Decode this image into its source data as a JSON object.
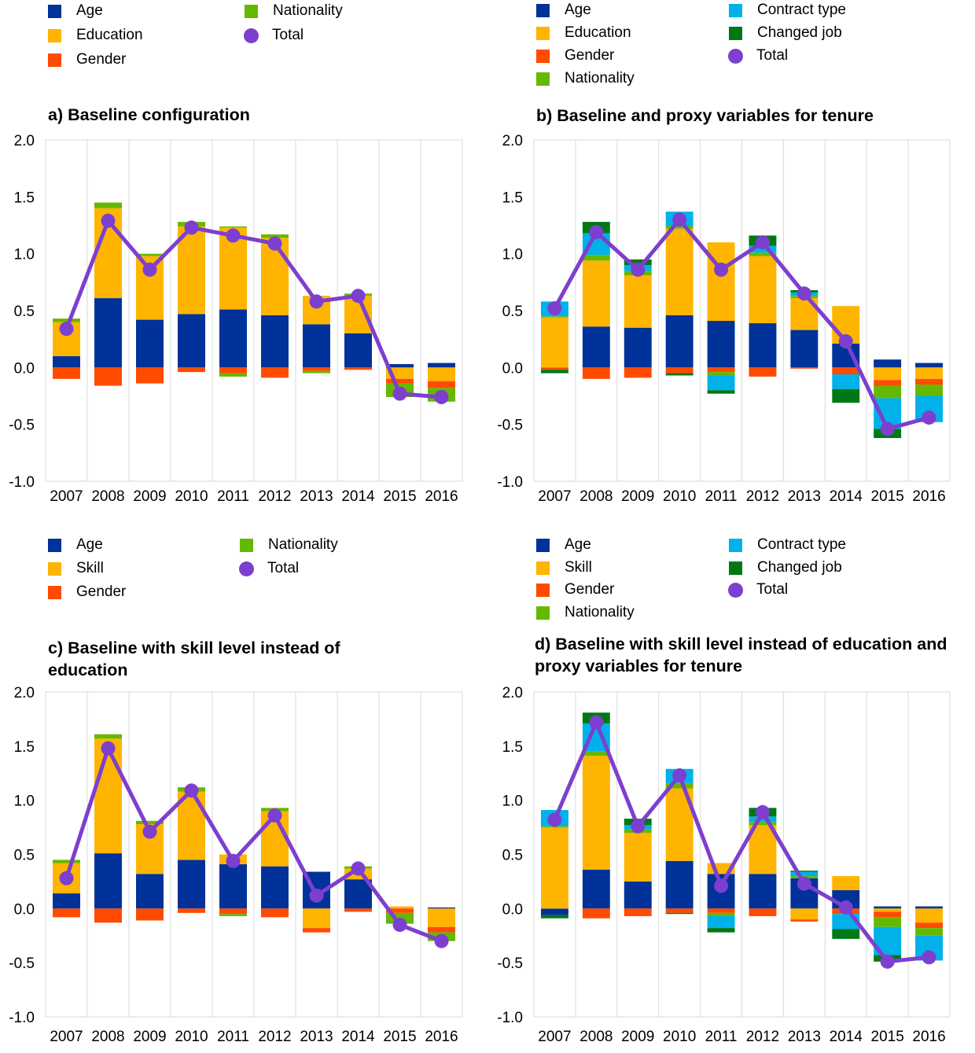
{
  "colors": {
    "Age": "#003299",
    "Education": "#FFB400",
    "Skill": "#FFB400",
    "Gender": "#FF4B00",
    "Nationality": "#65B800",
    "Contract type": "#00B1EA",
    "Changed job": "#007816",
    "Total": "#7D3FCF"
  },
  "panels": [
    {
      "legend": [
        {
          "label": "Age",
          "kind": "bar"
        },
        {
          "label": "Education",
          "kind": "bar"
        },
        {
          "label": "Gender",
          "kind": "bar"
        },
        {
          "label": "Nationality",
          "kind": "bar"
        },
        {
          "label": "Total",
          "kind": "line"
        }
      ],
      "chart_data": {
        "type": "bar",
        "stacked": true,
        "title": "a) Baseline configuration",
        "categories": [
          "2007",
          "2008",
          "2009",
          "2010",
          "2011",
          "2012",
          "2013",
          "2014",
          "2015",
          "2016"
        ],
        "yticks": [
          "2.0",
          "1.5",
          "1.0",
          "0.5",
          "0.0",
          "-0.5",
          "-1.0"
        ],
        "ylim": [
          -1.0,
          2.0
        ],
        "series": [
          {
            "name": "Age",
            "values": [
              0.1,
              0.61,
              0.42,
              0.47,
              0.51,
              0.46,
              0.38,
              0.3,
              0.03,
              0.04
            ]
          },
          {
            "name": "Education",
            "values": [
              0.3,
              0.79,
              0.56,
              0.77,
              0.72,
              0.68,
              0.25,
              0.33,
              -0.1,
              -0.12
            ]
          },
          {
            "name": "Gender",
            "values": [
              -0.1,
              -0.16,
              -0.14,
              -0.04,
              -0.05,
              -0.09,
              -0.03,
              -0.02,
              -0.04,
              -0.06
            ]
          },
          {
            "name": "Nationality",
            "values": [
              0.03,
              0.05,
              0.02,
              0.04,
              0.01,
              0.03,
              0.0,
              0.02,
              -0.12,
              -0.12
            ]
          },
          {
            "name": "Nationality",
            "values": [
              0.0,
              0.0,
              0.0,
              0.0,
              -0.03,
              0.0,
              -0.02,
              0.0,
              0.0,
              0.0
            ]
          }
        ],
        "total": [
          0.34,
          1.29,
          0.86,
          1.23,
          1.16,
          1.09,
          0.58,
          0.63,
          -0.23,
          -0.26
        ]
      }
    },
    {
      "legend": [
        {
          "label": "Age",
          "kind": "bar"
        },
        {
          "label": "Education",
          "kind": "bar"
        },
        {
          "label": "Gender",
          "kind": "bar"
        },
        {
          "label": "Nationality",
          "kind": "bar"
        },
        {
          "label": "Contract type",
          "kind": "bar"
        },
        {
          "label": "Changed job",
          "kind": "bar"
        },
        {
          "label": "Total",
          "kind": "line"
        }
      ],
      "chart_data": {
        "type": "bar",
        "stacked": true,
        "title": "b) Baseline and proxy variables for tenure",
        "categories": [
          "2007",
          "2008",
          "2009",
          "2010",
          "2011",
          "2012",
          "2013",
          "2014",
          "2015",
          "2016"
        ],
        "yticks": [
          "2.0",
          "1.5",
          "1.0",
          "0.5",
          "0.0",
          "-0.5",
          "-1.0"
        ],
        "ylim": [
          -1.0,
          2.0
        ],
        "series": [
          {
            "name": "Age",
            "values": [
              0.0,
              0.36,
              0.35,
              0.46,
              0.41,
              0.39,
              0.33,
              0.21,
              0.07,
              0.04
            ]
          },
          {
            "name": "Education",
            "values": [
              0.44,
              0.58,
              0.46,
              0.76,
              0.69,
              0.59,
              0.28,
              0.33,
              -0.11,
              -0.1
            ]
          },
          {
            "name": "Gender",
            "values": [
              -0.02,
              -0.1,
              -0.09,
              -0.05,
              -0.04,
              -0.08,
              -0.01,
              -0.06,
              -0.05,
              -0.05
            ]
          },
          {
            "name": "Nationality",
            "values": [
              0.01,
              0.05,
              0.04,
              0.03,
              -0.03,
              0.03,
              0.02,
              0.0,
              -0.11,
              -0.1
            ]
          },
          {
            "name": "Contract type",
            "values": [
              0.13,
              0.19,
              0.05,
              0.12,
              -0.13,
              0.06,
              0.03,
              -0.13,
              -0.27,
              -0.23
            ]
          },
          {
            "name": "Changed job",
            "values": [
              -0.03,
              0.1,
              0.05,
              -0.02,
              -0.03,
              0.09,
              0.02,
              -0.12,
              -0.08,
              0.0
            ]
          }
        ],
        "total": [
          0.52,
          1.19,
          0.86,
          1.3,
          0.86,
          1.1,
          0.65,
          0.23,
          -0.54,
          -0.44
        ]
      }
    },
    {
      "legend": [
        {
          "label": "Age",
          "kind": "bar"
        },
        {
          "label": "Skill",
          "kind": "bar"
        },
        {
          "label": "Gender",
          "kind": "bar"
        },
        {
          "label": "Nationality",
          "kind": "bar"
        },
        {
          "label": "Total",
          "kind": "line"
        }
      ],
      "chart_data": {
        "type": "bar",
        "stacked": true,
        "title": "c) Baseline with skill level instead of education",
        "categories": [
          "2007",
          "2008",
          "2009",
          "2010",
          "2011",
          "2012",
          "2013",
          "2014",
          "2015",
          "2016"
        ],
        "yticks": [
          "2.0",
          "1.5",
          "1.0",
          "0.5",
          "0.0",
          "-0.5",
          "-1.0"
        ],
        "ylim": [
          -1.0,
          2.0
        ],
        "series": [
          {
            "name": "Age",
            "values": [
              0.14,
              0.51,
              0.32,
              0.45,
              0.41,
              0.39,
              0.34,
              0.27,
              0.0,
              0.01
            ]
          },
          {
            "name": "Skill",
            "values": [
              0.28,
              1.06,
              0.46,
              0.63,
              0.09,
              0.51,
              -0.18,
              0.1,
              0.02,
              -0.17
            ]
          },
          {
            "name": "Gender",
            "values": [
              -0.08,
              -0.13,
              -0.11,
              -0.04,
              -0.05,
              -0.08,
              -0.04,
              -0.03,
              -0.04,
              -0.05
            ]
          },
          {
            "name": "Nationality",
            "values": [
              0.03,
              0.04,
              0.03,
              0.04,
              -0.02,
              0.03,
              0.0,
              0.02,
              -0.1,
              -0.08
            ]
          }
        ],
        "total": [
          0.28,
          1.48,
          0.71,
          1.09,
          0.44,
          0.86,
          0.12,
          0.37,
          -0.15,
          -0.3
        ]
      }
    },
    {
      "legend": [
        {
          "label": "Age",
          "kind": "bar"
        },
        {
          "label": "Skill",
          "kind": "bar"
        },
        {
          "label": "Gender",
          "kind": "bar"
        },
        {
          "label": "Nationality",
          "kind": "bar"
        },
        {
          "label": "Contract type",
          "kind": "bar"
        },
        {
          "label": "Changed job",
          "kind": "bar"
        },
        {
          "label": "Total",
          "kind": "line"
        }
      ],
      "chart_data": {
        "type": "bar",
        "stacked": true,
        "title": "d) Baseline with skill level instead of education and proxy variables for tenure",
        "categories": [
          "2007",
          "2008",
          "2009",
          "2010",
          "2011",
          "2012",
          "2013",
          "2014",
          "2015",
          "2016"
        ],
        "yticks": [
          "2.0",
          "1.5",
          "1.0",
          "0.5",
          "0.0",
          "-0.5",
          "-1.0"
        ],
        "ylim": [
          -1.0,
          2.0
        ],
        "series": [
          {
            "name": "Age",
            "values": [
              -0.06,
              0.36,
              0.25,
              0.44,
              0.32,
              0.32,
              0.28,
              0.17,
              0.02,
              0.02
            ]
          },
          {
            "name": "Skill",
            "values": [
              0.75,
              1.05,
              0.45,
              0.67,
              0.1,
              0.45,
              -0.1,
              0.13,
              -0.03,
              -0.13
            ]
          },
          {
            "name": "Gender",
            "values": [
              0.0,
              -0.09,
              -0.07,
              -0.04,
              -0.04,
              -0.07,
              -0.02,
              -0.05,
              -0.05,
              -0.05
            ]
          },
          {
            "name": "Nationality",
            "values": [
              0.01,
              0.04,
              0.03,
              0.05,
              -0.03,
              0.03,
              0.02,
              0.0,
              -0.09,
              -0.07
            ]
          },
          {
            "name": "Contract type",
            "values": [
              0.15,
              0.26,
              0.04,
              0.13,
              -0.11,
              0.05,
              0.04,
              -0.14,
              -0.26,
              -0.23
            ]
          },
          {
            "name": "Changed job",
            "values": [
              -0.03,
              0.1,
              0.06,
              -0.01,
              -0.04,
              0.08,
              0.01,
              -0.09,
              -0.06,
              0.0
            ]
          }
        ],
        "total": [
          0.82,
          1.72,
          0.76,
          1.23,
          0.21,
          0.89,
          0.23,
          0.01,
          -0.49,
          -0.45
        ]
      }
    }
  ]
}
